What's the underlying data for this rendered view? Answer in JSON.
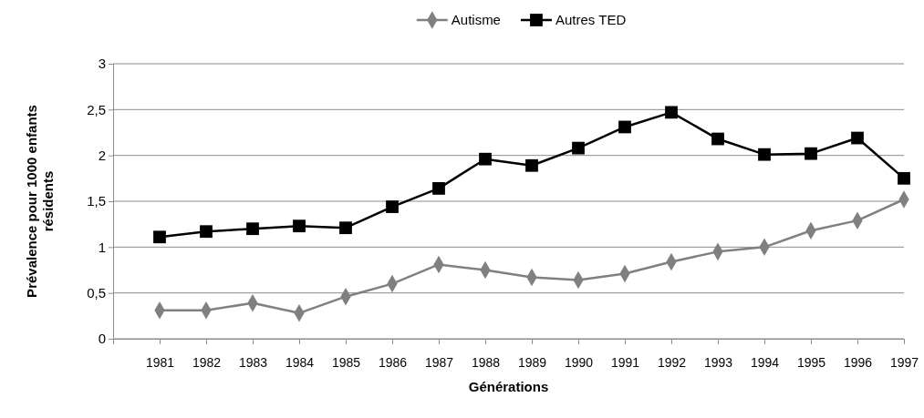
{
  "chart_data": {
    "type": "line",
    "xlabel": "Générations",
    "ylabel": "Prévalence pour 1000 enfants résidents",
    "categories": [
      "1981",
      "1982",
      "1983",
      "1984",
      "1985",
      "1986",
      "1987",
      "1988",
      "1989",
      "1990",
      "1991",
      "1992",
      "1993",
      "1994",
      "1995",
      "1996",
      "1997"
    ],
    "series": [
      {
        "name": "Autisme",
        "color": "#808080",
        "marker": "diamond",
        "values": [
          0.31,
          0.31,
          0.39,
          0.28,
          0.46,
          0.6,
          0.81,
          0.75,
          0.67,
          0.64,
          0.71,
          0.84,
          0.95,
          1.0,
          1.18,
          1.29,
          1.52
        ]
      },
      {
        "name": "Autres TED",
        "color": "#000000",
        "marker": "square",
        "values": [
          1.11,
          1.17,
          1.2,
          1.23,
          1.21,
          1.44,
          1.64,
          1.96,
          1.89,
          2.08,
          2.31,
          2.47,
          2.18,
          2.01,
          2.02,
          2.19,
          1.75
        ]
      }
    ],
    "ylim": [
      0,
      3
    ],
    "yticks": [
      0,
      {
        "value": 0.5,
        "label": "0,5"
      },
      1,
      {
        "value": 1.5,
        "label": "1,5"
      },
      2,
      {
        "value": 2.5,
        "label": "2,5"
      },
      3
    ],
    "grid": "y",
    "legend": "top"
  }
}
